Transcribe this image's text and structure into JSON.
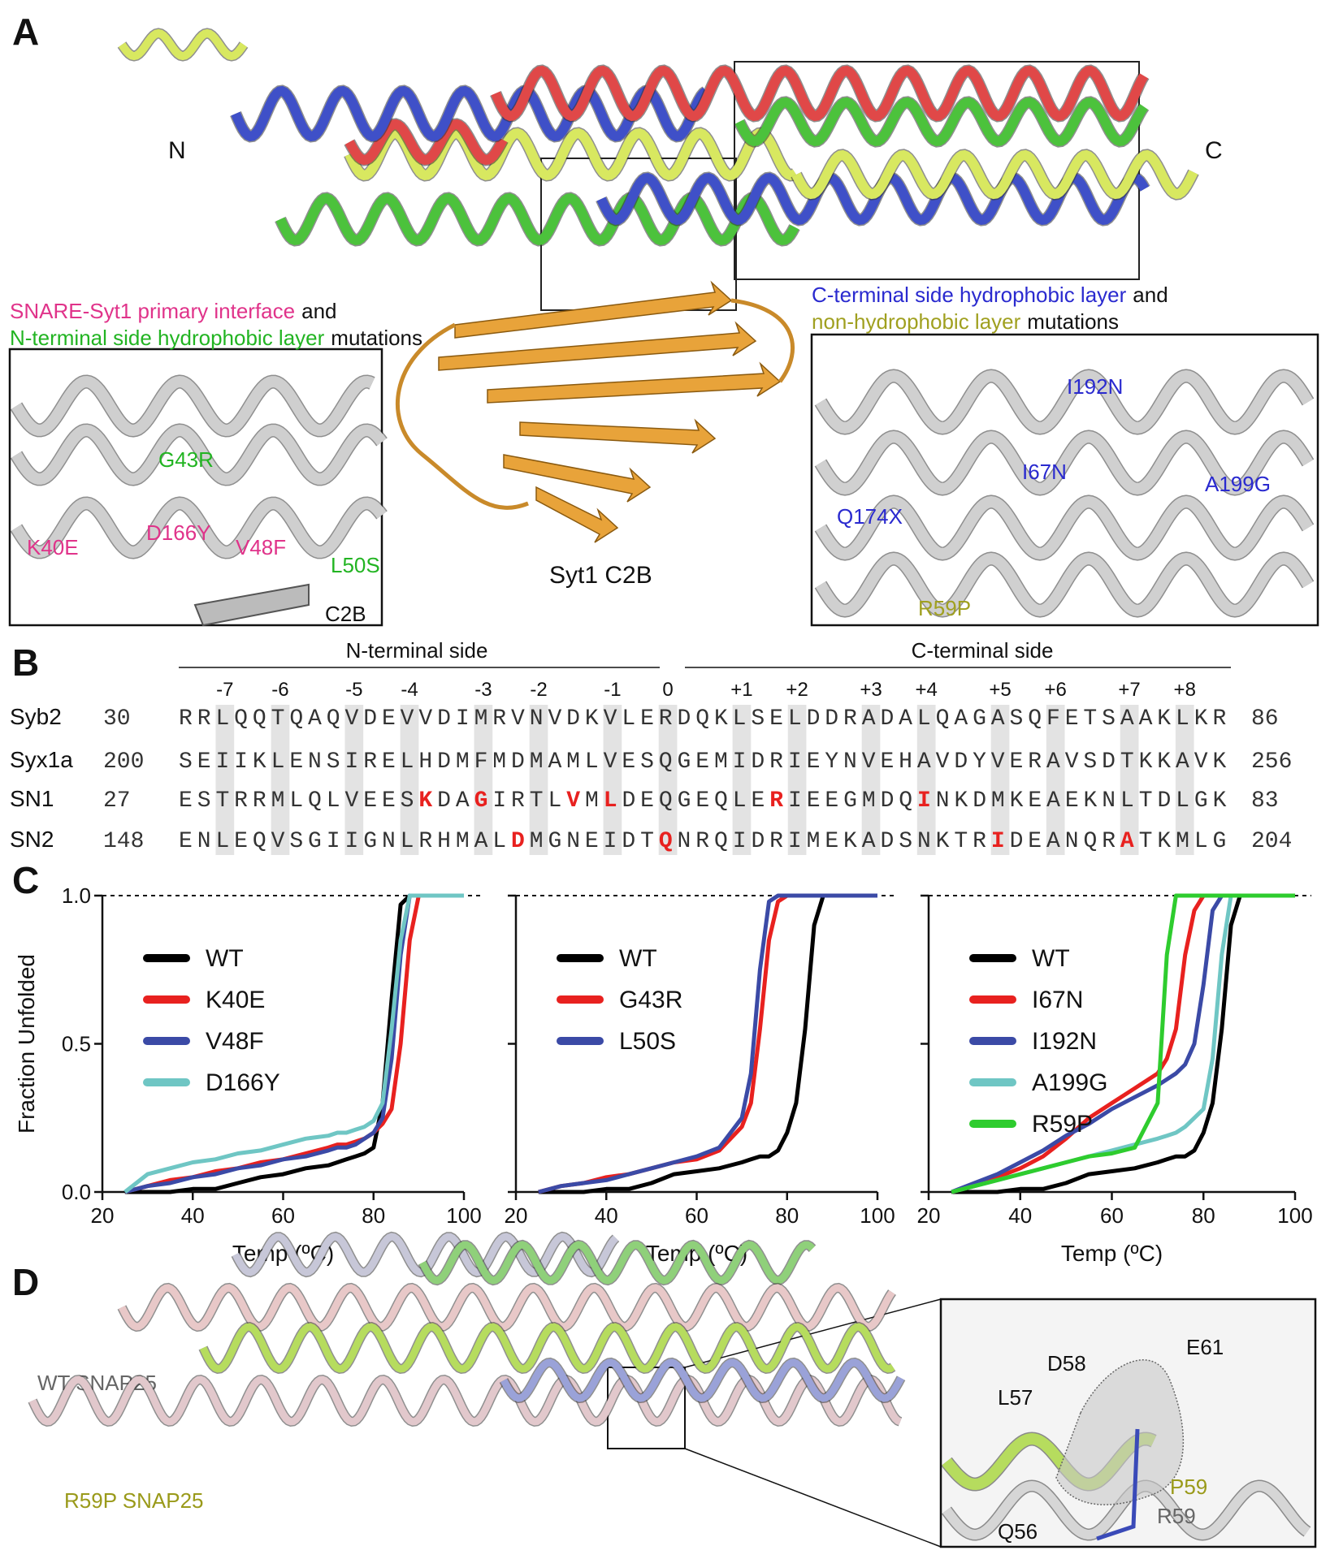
{
  "panel_a": {
    "label": "A",
    "n_label": "N",
    "c_label": "C",
    "left_title": {
      "pink": "SNARE-Syt1 primary interface",
      "and": "and",
      "green": "N-terminal side hydrophobic layer",
      "end": "mutations"
    },
    "left_mutations": [
      {
        "text": "G43R",
        "color": "#22b422"
      },
      {
        "text": "K40E",
        "color": "#e0338a"
      },
      {
        "text": "D166Y",
        "color": "#e0338a"
      },
      {
        "text": "V48F",
        "color": "#e0338a"
      },
      {
        "text": "L50S",
        "color": "#22b422"
      }
    ],
    "c2b_inset": "C2B",
    "center_label": "Syt1 C2B",
    "right_title": {
      "blue": "C-terminal side hydrophobic layer",
      "and": "and",
      "olive": "non-hydrophobic layer",
      "end": "mutations"
    },
    "right_mutations": [
      {
        "text": "I192N",
        "color": "#2a2acf"
      },
      {
        "text": "A199G",
        "color": "#2a2acf"
      },
      {
        "text": "I67N",
        "color": "#2a2acf"
      },
      {
        "text": "Q174X",
        "color": "#2a2acf"
      },
      {
        "text": "R59P",
        "color": "#a0a020"
      }
    ]
  },
  "panel_b": {
    "label": "B",
    "n_side": "N-terminal side",
    "c_side": "C-terminal side",
    "layers": [
      "-7",
      "-6",
      "-5",
      "-4",
      "-3",
      "-2",
      "-1",
      "0",
      "+1",
      "+2",
      "+3",
      "+4",
      "+5",
      "+6",
      "+7",
      "+8"
    ],
    "rows": [
      {
        "name": "Syb2",
        "start": "30",
        "end": "86",
        "segments": [
          {
            "text": "RRLQQTQAQVDEVVDIMRVNVDKVLERDQKLSELDDRADALQAGASQFETSAAKLKR"
          }
        ]
      },
      {
        "name": "Syx1a",
        "start": "200",
        "end": "256",
        "segments": [
          {
            "text": "SEIIKLENSIRELHDMFMDMAMLVESQGEMIDRIEYNVEHAVDYVERAVSDTKKAVK"
          }
        ]
      },
      {
        "name": "SN1",
        "start": "27",
        "end": "83",
        "segments": [
          {
            "text": "ESTRRMLQLVEES"
          },
          {
            "text": "K",
            "mutated": true
          },
          {
            "text": "DA"
          },
          {
            "text": "G",
            "mutated": true
          },
          {
            "text": "IRTL"
          },
          {
            "text": "V",
            "mutated": true
          },
          {
            "text": "M"
          },
          {
            "text": "L",
            "mutated": true
          },
          {
            "text": "DEQGEQLE"
          },
          {
            "text": "R",
            "mutated": true
          },
          {
            "text": "IEEGMDQ"
          },
          {
            "text": "I",
            "mutated": true
          },
          {
            "text": "NKDMKEAEKNLTDLGK"
          }
        ]
      },
      {
        "name": "SN2",
        "start": "148",
        "end": "204",
        "segments": [
          {
            "text": "ENLEQVSGIIGNLRHMAL"
          },
          {
            "text": "D",
            "mutated": true
          },
          {
            "text": "MGNEIDT"
          },
          {
            "text": "Q",
            "mutated": true
          },
          {
            "text": "NRQIDRIMEKADSNKTR"
          },
          {
            "text": "I",
            "mutated": true
          },
          {
            "text": "DEANQR"
          },
          {
            "text": "A",
            "mutated": true
          },
          {
            "text": "TKMLG"
          }
        ]
      }
    ]
  },
  "panel_c_label": "C",
  "chart_data": [
    {
      "type": "line",
      "y_label": "Fraction Unfolded",
      "x_label": "Temp (ºC)",
      "ytick_labels": true,
      "x": [
        25,
        30,
        35,
        40,
        45,
        50,
        55,
        60,
        65,
        70,
        72,
        74,
        76,
        78,
        80,
        82,
        84,
        86,
        88,
        90,
        95,
        100
      ],
      "xlim": [
        20,
        100
      ],
      "xticks": [
        20,
        40,
        60,
        80,
        100
      ],
      "ylim": [
        0,
        1
      ],
      "yticks": [
        {
          "value": 0,
          "label": "0.0"
        },
        {
          "value": 0.5,
          "label": "0.5"
        },
        {
          "value": 1,
          "label": "1.0"
        }
      ],
      "reference_line": 1,
      "series": [
        {
          "name": "WT",
          "color": "#000000",
          "values": [
            0,
            0,
            0,
            0.01,
            0.01,
            0.03,
            0.05,
            0.06,
            0.08,
            0.09,
            0.1,
            0.11,
            0.12,
            0.13,
            0.15,
            0.3,
            0.65,
            0.97,
            1,
            1,
            1,
            1
          ]
        },
        {
          "name": "K40E",
          "color": "#e8211f",
          "values": [
            0,
            0.02,
            0.04,
            0.05,
            0.07,
            0.08,
            0.1,
            0.11,
            0.13,
            0.15,
            0.16,
            0.16,
            0.17,
            0.18,
            0.2,
            0.23,
            0.28,
            0.5,
            0.85,
            1,
            1,
            1
          ]
        },
        {
          "name": "V48F",
          "color": "#3b4aa6",
          "values": [
            0,
            0.02,
            0.03,
            0.05,
            0.06,
            0.08,
            0.09,
            0.11,
            0.12,
            0.14,
            0.15,
            0.15,
            0.16,
            0.18,
            0.2,
            0.25,
            0.45,
            0.8,
            1,
            1,
            1,
            1
          ]
        },
        {
          "name": "D166Y",
          "color": "#6fc6c4",
          "values": [
            0,
            0.06,
            0.08,
            0.1,
            0.11,
            0.13,
            0.14,
            0.16,
            0.18,
            0.19,
            0.2,
            0.2,
            0.21,
            0.22,
            0.24,
            0.3,
            0.55,
            0.85,
            1,
            1,
            1,
            1
          ]
        }
      ]
    },
    {
      "type": "line",
      "x_label": "Temp (ºC)",
      "ytick_labels": false,
      "x": [
        25,
        30,
        35,
        40,
        45,
        50,
        55,
        60,
        65,
        70,
        72,
        74,
        76,
        78,
        80,
        82,
        84,
        86,
        88,
        90,
        95,
        100
      ],
      "xlim": [
        20,
        100
      ],
      "xticks": [
        20,
        40,
        60,
        80,
        100
      ],
      "ylim": [
        0,
        1
      ],
      "yticks": [
        0,
        0.5,
        1
      ],
      "reference_line": 1,
      "series": [
        {
          "name": "WT",
          "color": "#000000",
          "values": [
            0,
            0,
            0,
            0.01,
            0.01,
            0.03,
            0.06,
            0.07,
            0.08,
            0.1,
            0.11,
            0.12,
            0.12,
            0.14,
            0.2,
            0.3,
            0.55,
            0.9,
            1,
            1,
            1,
            1
          ]
        },
        {
          "name": "G43R",
          "color": "#e8211f",
          "values": [
            0,
            0.02,
            0.03,
            0.05,
            0.06,
            0.08,
            0.1,
            0.11,
            0.14,
            0.22,
            0.3,
            0.55,
            0.85,
            0.98,
            1,
            1,
            1,
            1,
            1,
            1,
            1,
            1
          ]
        },
        {
          "name": "L50S",
          "color": "#3b4aa6",
          "values": [
            0,
            0.02,
            0.03,
            0.04,
            0.06,
            0.08,
            0.1,
            0.12,
            0.15,
            0.25,
            0.4,
            0.75,
            0.98,
            1,
            1,
            1,
            1,
            1,
            1,
            1,
            1,
            1
          ]
        }
      ]
    },
    {
      "type": "line",
      "x_label": "Temp (ºC)",
      "ytick_labels": false,
      "x": [
        25,
        30,
        35,
        40,
        45,
        50,
        55,
        60,
        65,
        70,
        72,
        74,
        76,
        78,
        80,
        82,
        84,
        86,
        88,
        90,
        95,
        100
      ],
      "xlim": [
        20,
        100
      ],
      "xticks": [
        20,
        40,
        60,
        80,
        100
      ],
      "ylim": [
        0,
        1
      ],
      "yticks": [
        0,
        0.5,
        1
      ],
      "reference_line": 1,
      "series": [
        {
          "name": "WT",
          "color": "#000000",
          "values": [
            0,
            0,
            0,
            0.01,
            0.01,
            0.03,
            0.06,
            0.07,
            0.08,
            0.1,
            0.11,
            0.12,
            0.12,
            0.14,
            0.2,
            0.3,
            0.55,
            0.9,
            1,
            1,
            1,
            1
          ]
        },
        {
          "name": "I67N",
          "color": "#e8211f",
          "values": [
            0,
            0.02,
            0.05,
            0.08,
            0.12,
            0.18,
            0.25,
            0.3,
            0.35,
            0.4,
            0.45,
            0.55,
            0.8,
            0.95,
            1,
            1,
            1,
            1,
            1,
            1,
            1,
            1
          ]
        },
        {
          "name": "I192N",
          "color": "#3b4aa6",
          "values": [
            0,
            0.03,
            0.06,
            0.1,
            0.14,
            0.19,
            0.23,
            0.28,
            0.32,
            0.36,
            0.38,
            0.4,
            0.43,
            0.5,
            0.7,
            0.95,
            1,
            1,
            1,
            1,
            1,
            1
          ]
        },
        {
          "name": "A199G",
          "color": "#6fc6c4",
          "values": [
            0,
            0.02,
            0.04,
            0.06,
            0.08,
            0.1,
            0.12,
            0.14,
            0.16,
            0.18,
            0.19,
            0.2,
            0.22,
            0.25,
            0.28,
            0.45,
            0.8,
            1,
            1,
            1,
            1,
            1
          ]
        },
        {
          "name": "R59P",
          "color": "#2ecc2e",
          "values": [
            0,
            0.02,
            0.04,
            0.06,
            0.08,
            0.1,
            0.12,
            0.13,
            0.15,
            0.3,
            0.8,
            1,
            1,
            1,
            1,
            1,
            1,
            1,
            1,
            1,
            1,
            1
          ]
        }
      ]
    }
  ],
  "panel_d": {
    "label": "D",
    "wt": "WT SNAP25",
    "mutant": "R59P SNAP25",
    "inset_labels": [
      {
        "text": "E61",
        "color": "#111111"
      },
      {
        "text": "D58",
        "color": "#111111"
      },
      {
        "text": "L57",
        "color": "#111111"
      },
      {
        "text": "P59",
        "color": "#9a9a1a"
      },
      {
        "text": "R59",
        "color": "#666666"
      },
      {
        "text": "Q56",
        "color": "#111111"
      }
    ]
  }
}
